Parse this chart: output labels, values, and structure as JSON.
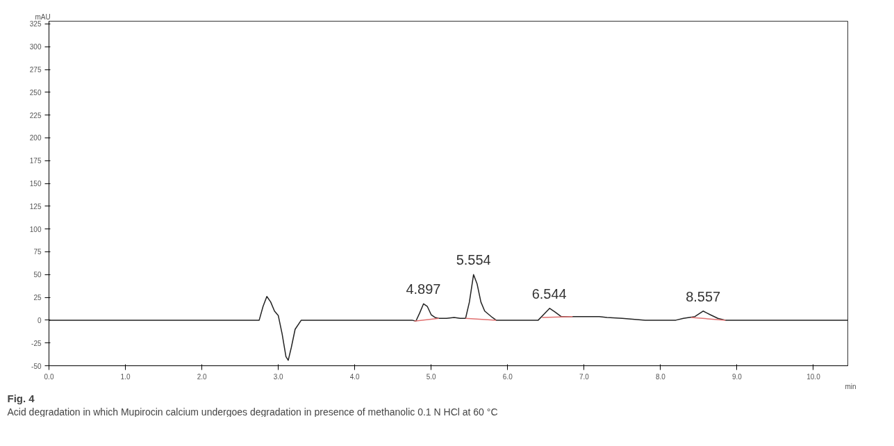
{
  "chart_data": {
    "type": "line",
    "title": "Fig. 4",
    "subtitle": "Acid degradation in which Mupirocin calcium undergoes degradation in presence of methanolic 0.1 N HCl at 60 °C",
    "xlabel": "min",
    "ylabel": "mAU",
    "xlim": [
      0,
      10.45
    ],
    "ylim": [
      -50,
      328
    ],
    "xticks": [
      {
        "value": 0,
        "label": "0.0"
      },
      {
        "value": 1,
        "label": "1.0"
      },
      {
        "value": 2,
        "label": "2.0"
      },
      {
        "value": 3,
        "label": "3.0"
      },
      {
        "value": 4,
        "label": "4.0"
      },
      {
        "value": 5,
        "label": "5.0"
      },
      {
        "value": 6,
        "label": "6.0"
      },
      {
        "value": 7,
        "label": "7.0"
      },
      {
        "value": 8,
        "label": "8.0"
      },
      {
        "value": 9,
        "label": "9.0"
      },
      {
        "value": 10,
        "label": "10.0"
      }
    ],
    "yticks": [
      -50,
      -25,
      0,
      25,
      50,
      75,
      100,
      125,
      150,
      175,
      200,
      225,
      250,
      275,
      300,
      325
    ],
    "grid": false,
    "marker": "none",
    "line_style": "solid",
    "series": [
      {
        "color": "#222222",
        "x": [
          0,
          2.75,
          2.8,
          2.85,
          2.9,
          2.95,
          3.0,
          3.05,
          3.1,
          3.13,
          3.17,
          3.22,
          3.3,
          4.75,
          4.8,
          4.85,
          4.9,
          4.95,
          5.0,
          5.05,
          5.1,
          5.2,
          5.3,
          5.38,
          5.45,
          5.5,
          5.554,
          5.6,
          5.65,
          5.7,
          5.8,
          5.85,
          6.4,
          6.48,
          6.55,
          6.62,
          6.7,
          7.2,
          7.3,
          7.5,
          7.8,
          8.2,
          8.3,
          8.45,
          8.557,
          8.65,
          8.75,
          8.85,
          10.45
        ],
        "values": [
          0,
          0,
          15,
          26,
          20,
          10,
          5,
          -15,
          -40,
          -44,
          -30,
          -10,
          0,
          0,
          -1,
          8,
          18,
          15,
          6,
          3,
          2,
          2,
          3,
          2,
          2,
          20,
          50,
          40,
          20,
          10,
          3,
          0,
          0,
          7,
          13,
          9,
          4,
          4,
          3,
          2,
          0,
          0,
          2,
          4,
          10,
          6,
          2,
          0,
          0
        ]
      },
      {
        "color": "#e07070",
        "x": [
          4.78,
          5.1,
          5.2,
          5.45,
          5.85,
          6.0,
          6.45,
          6.85,
          7.0,
          8.4,
          8.85
        ],
        "values": [
          -1,
          2,
          null,
          2,
          0,
          null,
          3,
          4,
          null,
          3,
          0
        ]
      }
    ],
    "annotations": [
      {
        "text": "4.897",
        "x": 4.897,
        "y": 18
      },
      {
        "text": "5.554",
        "x": 5.554,
        "y": 50
      },
      {
        "text": "6.544",
        "x": 6.544,
        "y": 13
      },
      {
        "text": "8.557",
        "x": 8.557,
        "y": 10
      }
    ]
  }
}
